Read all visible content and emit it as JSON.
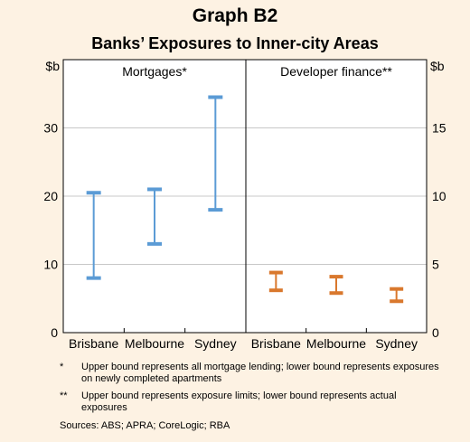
{
  "chart_data": {
    "type": "range-bar",
    "title": "Graph B2",
    "subtitle": "Banks’ Exposures to Inner-city Areas",
    "panels": [
      {
        "name": "Mortgages*",
        "unit": "$b",
        "axis_side": "left",
        "ylim": [
          0,
          40
        ],
        "ticks": [
          0,
          10,
          20,
          30
        ],
        "categories": [
          "Brisbane",
          "Melbourne",
          "Sydney"
        ],
        "low": [
          8,
          13,
          18
        ],
        "high": [
          20.5,
          21,
          34.5
        ],
        "color": "#5b9bd5"
      },
      {
        "name": "Developer finance**",
        "unit": "$b",
        "axis_side": "right",
        "ylim": [
          0,
          20
        ],
        "ticks": [
          0,
          5,
          10,
          15
        ],
        "categories": [
          "Brisbane",
          "Melbourne",
          "Sydney"
        ],
        "low": [
          3.1,
          2.9,
          2.3
        ],
        "high": [
          4.4,
          4.1,
          3.2
        ],
        "color": "#d9782d"
      }
    ],
    "grid": true
  },
  "notes": [
    {
      "mark": "*",
      "text": "Upper bound represents all mortgage lending; lower bound represents exposures on newly completed apartments"
    },
    {
      "mark": "**",
      "text": "Upper bound represents exposure limits; lower bound represents actual exposures"
    }
  ],
  "sources": "Sources:   ABS; APRA; CoreLogic; RBA"
}
